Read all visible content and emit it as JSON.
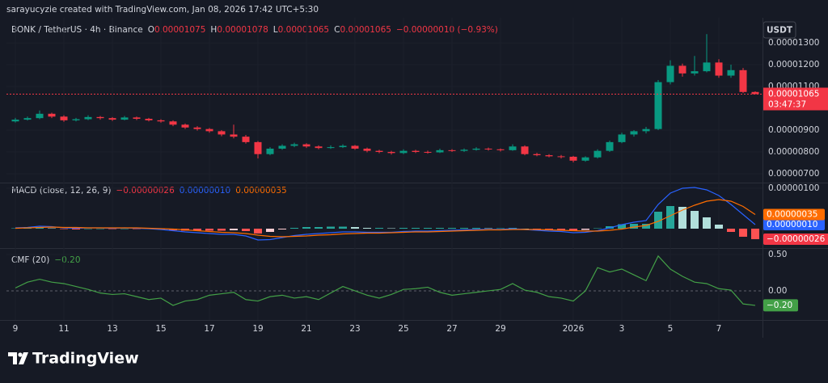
{
  "header": {
    "watermark": "sarayucyzie created with TradingView.com, Jan 08, 2026 17:42 UTC+5:30",
    "currency": "USDT",
    "brand": "TradingView"
  },
  "chart_data": [
    {
      "type": "candlestick",
      "title": "BONK / TetherUS · 4h · Binance",
      "legend": [
        {
          "key": "O",
          "value": "0.00001075"
        },
        {
          "key": "H",
          "value": "0.00001078"
        },
        {
          "key": "L",
          "value": "0.00001065"
        },
        {
          "key": "C",
          "value": "0.00001065"
        }
      ],
      "change": "−0.00000010 (−0.93%)",
      "categories": [
        "9",
        null,
        null,
        null,
        "11",
        null,
        null,
        null,
        "13",
        null,
        null,
        null,
        "15",
        null,
        null,
        null,
        "17",
        null,
        null,
        null,
        "19",
        null,
        null,
        null,
        "21",
        null,
        null,
        null,
        "23",
        null,
        null,
        null,
        "25",
        null,
        null,
        null,
        "27",
        null,
        null,
        null,
        "29",
        null,
        null,
        null,
        null,
        null,
        "2026",
        null,
        null,
        null,
        "3",
        null,
        null,
        null,
        "5",
        null,
        null,
        null,
        "7",
        null,
        null,
        null
      ],
      "open": [
        9.4e-06,
        9.48e-06,
        9.55e-06,
        9.75e-06,
        9.62e-06,
        9.45e-06,
        9.5e-06,
        9.6e-06,
        9.55e-06,
        9.48e-06,
        9.58e-06,
        9.52e-06,
        9.45e-06,
        9.4e-06,
        9.25e-06,
        9.12e-06,
        9.05e-06,
        8.95e-06,
        8.8e-06,
        8.7e-06,
        8.45e-06,
        7.9e-06,
        8.15e-06,
        8.28e-06,
        8.35e-06,
        8.25e-06,
        8.18e-06,
        8.22e-06,
        8.28e-06,
        8.15e-06,
        8.05e-06,
        8e-06,
        7.95e-06,
        8.05e-06,
        8e-06,
        7.98e-06,
        8.08e-06,
        8.05e-06,
        8.1e-06,
        8.15e-06,
        8.12e-06,
        8.08e-06,
        8.25e-06,
        7.9e-06,
        7.85e-06,
        7.8e-06,
        7.78e-06,
        7.6e-06,
        7.75e-06,
        8.05e-06,
        8.45e-06,
        8.8e-06,
        8.95e-06,
        9.05e-06,
        1.12e-05,
        1.195e-05,
        1.16e-05,
        1.17e-05,
        1.21e-05,
        1.15e-05,
        1.175e-05,
        1.075e-05
      ],
      "high": [
        9.56e-06,
        9.62e-06,
        9.9e-06,
        9.8e-06,
        9.68e-06,
        9.56e-06,
        9.68e-06,
        9.65e-06,
        9.6e-06,
        9.65e-06,
        9.62e-06,
        9.56e-06,
        9.5e-06,
        9.45e-06,
        9.3e-06,
        9.18e-06,
        9.1e-06,
        9e-06,
        9.25e-06,
        8.78e-06,
        8.5e-06,
        8.22e-06,
        8.35e-06,
        8.42e-06,
        8.4e-06,
        8.3e-06,
        8.3e-06,
        8.35e-06,
        8.32e-06,
        8.2e-06,
        8.1e-06,
        8.05e-06,
        8.12e-06,
        8.1e-06,
        8.06e-06,
        8.15e-06,
        8.13e-06,
        8.16e-06,
        8.22e-06,
        8.2e-06,
        8.16e-06,
        8.35e-06,
        8.3e-06,
        7.96e-06,
        7.9e-06,
        7.86e-06,
        7.82e-06,
        7.8e-06,
        8.12e-06,
        8.52e-06,
        8.88e-06,
        9e-06,
        9.15e-06,
        1.13e-05,
        1.22e-05,
        1.205e-05,
        1.24e-05,
        1.34e-05,
        1.225e-05,
        1.2e-05,
        1.185e-05,
        1.078e-05
      ],
      "low": [
        9.35e-06,
        9.44e-06,
        9.5e-06,
        9.55e-06,
        9.38e-06,
        9.4e-06,
        9.46e-06,
        9.48e-06,
        9.42e-06,
        9.45e-06,
        9.46e-06,
        9.4e-06,
        9.34e-06,
        9.18e-06,
        9.05e-06,
        8.98e-06,
        8.88e-06,
        8.72e-06,
        8.62e-06,
        8.38e-06,
        7.7e-06,
        7.85e-06,
        8.1e-06,
        8.22e-06,
        8.18e-06,
        8.12e-06,
        8.14e-06,
        8.18e-06,
        8.1e-06,
        7.98e-06,
        7.94e-06,
        7.88e-06,
        7.9e-06,
        7.95e-06,
        7.92e-06,
        7.95e-06,
        8e-06,
        8e-06,
        8.06e-06,
        8.06e-06,
        8.02e-06,
        8.05e-06,
        7.85e-06,
        7.8e-06,
        7.75e-06,
        7.7e-06,
        7.52e-06,
        7.55e-06,
        7.7e-06,
        8e-06,
        8.4e-06,
        8.7e-06,
        8.85e-06,
        9e-06,
        1.11e-05,
        1.145e-05,
        1.15e-05,
        1.165e-05,
        1.14e-05,
        1.14e-05,
        1.07e-05,
        1.065e-05
      ],
      "close": [
        9.48e-06,
        9.55e-06,
        9.75e-06,
        9.62e-06,
        9.45e-06,
        9.5e-06,
        9.6e-06,
        9.55e-06,
        9.48e-06,
        9.58e-06,
        9.52e-06,
        9.45e-06,
        9.4e-06,
        9.25e-06,
        9.12e-06,
        9.05e-06,
        8.95e-06,
        8.8e-06,
        8.7e-06,
        8.45e-06,
        7.9e-06,
        8.15e-06,
        8.28e-06,
        8.35e-06,
        8.25e-06,
        8.18e-06,
        8.22e-06,
        8.28e-06,
        8.15e-06,
        8.05e-06,
        8e-06,
        7.95e-06,
        8.05e-06,
        8e-06,
        7.98e-06,
        8.08e-06,
        8.05e-06,
        8.1e-06,
        8.15e-06,
        8.12e-06,
        8.08e-06,
        8.25e-06,
        7.9e-06,
        7.85e-06,
        7.8e-06,
        7.78e-06,
        7.6e-06,
        7.75e-06,
        8.05e-06,
        8.45e-06,
        8.8e-06,
        8.95e-06,
        9.05e-06,
        1.12e-05,
        1.195e-05,
        1.16e-05,
        1.17e-05,
        1.21e-05,
        1.15e-05,
        1.175e-05,
        1.075e-05,
        1.065e-05
      ],
      "up_color": "#089981",
      "down_color": "#f23645",
      "ylim": [
        6.63e-06,
        1.341e-05
      ],
      "yticks": [
        {
          "value": 7e-06,
          "label": "0.00000700"
        },
        {
          "value": 8e-06,
          "label": "0.00000800"
        },
        {
          "value": 9e-06,
          "label": "0.00000900"
        },
        {
          "value": 1.1e-05,
          "label": "0.00001100"
        },
        {
          "value": 1.2e-05,
          "label": "0.00001200"
        },
        {
          "value": 1.3e-05,
          "label": "0.00001300"
        }
      ],
      "grid": true,
      "last_label": "0.00001065",
      "countdown": "03:47:37"
    },
    {
      "type": "macd",
      "title": "MACD (close, 12, 26, 9)",
      "series": [
        {
          "kind": "histogram",
          "color": "#f23645",
          "last_label": "−0.00000026",
          "values": [
            1e-08,
            1e-08,
            3e-08,
            1e-08,
            -1e-08,
            -2e-08,
            0,
            0,
            -1e-08,
            0,
            -1e-08,
            -1e-08,
            -2e-08,
            -4e-08,
            -5e-08,
            -5e-08,
            -5e-08,
            -5e-08,
            -4e-08,
            -6e-08,
            -1.2e-07,
            -8e-08,
            -2e-08,
            2e-08,
            4e-08,
            4e-08,
            5e-08,
            5e-08,
            4e-08,
            2e-08,
            2e-08,
            1e-08,
            2e-08,
            2e-08,
            2e-08,
            2e-08,
            2e-08,
            2e-08,
            2e-08,
            1e-08,
            1e-08,
            2e-08,
            0,
            -2e-08,
            -3e-08,
            -3e-08,
            -5e-08,
            -3e-08,
            1e-08,
            6e-08,
            1.1e-07,
            1.2e-07,
            1.2e-07,
            4.2e-07,
            5.6e-07,
            5.4e-07,
            4.4e-07,
            2.8e-07,
            1e-07,
            -8e-08,
            -2e-07,
            -2.6e-07
          ]
        },
        {
          "kind": "line",
          "color": "#2962ff",
          "last_label": "0.00000010",
          "values": [
            2e-08,
            3e-08,
            6e-08,
            5e-08,
            2e-08,
            1e-08,
            2e-08,
            2e-08,
            1e-08,
            2e-08,
            1e-08,
            0,
            -2e-08,
            -5e-08,
            -8e-08,
            -1e-07,
            -1.2e-07,
            -1.4e-07,
            -1.4e-07,
            -1.8e-07,
            -2.8e-07,
            -2.7e-07,
            -2.2e-07,
            -1.7e-07,
            -1.4e-07,
            -1.2e-07,
            -1e-07,
            -8e-08,
            -8e-08,
            -9e-08,
            -9e-08,
            -9e-08,
            -7e-08,
            -6e-08,
            -6e-08,
            -5e-08,
            -4e-08,
            -3e-08,
            -2e-08,
            -2e-08,
            -2e-08,
            0,
            -2e-08,
            -4e-08,
            -6e-08,
            -7e-08,
            -1e-07,
            -9e-08,
            -5e-08,
            2e-08,
            1e-07,
            1.6e-07,
            2e-07,
            6e-07,
            8.8e-07,
            1e-06,
            1.02e-06,
            9.6e-07,
            8.2e-07,
            6e-07,
            3.5e-07,
            1e-07
          ]
        },
        {
          "kind": "line",
          "color": "#ff6d00",
          "last_label": "0.00000035",
          "values": [
            1e-08,
            2e-08,
            3e-08,
            4e-08,
            3e-08,
            3e-08,
            2e-08,
            2e-08,
            2e-08,
            2e-08,
            2e-08,
            1e-08,
            0,
            -1e-08,
            -3e-08,
            -5e-08,
            -7e-08,
            -9e-08,
            -1e-07,
            -1.2e-07,
            -1.6e-07,
            -1.9e-07,
            -2e-07,
            -1.9e-07,
            -1.8e-07,
            -1.6e-07,
            -1.5e-07,
            -1.3e-07,
            -1.2e-07,
            -1.1e-07,
            -1.1e-07,
            -1e-07,
            -9e-08,
            -8e-08,
            -8e-08,
            -7e-08,
            -6e-08,
            -5e-08,
            -4e-08,
            -3e-08,
            -3e-08,
            -2e-08,
            -2e-08,
            -2e-08,
            -3e-08,
            -4e-08,
            -5e-08,
            -6e-08,
            -6e-08,
            -4e-08,
            -1e-08,
            4e-08,
            8e-08,
            1.8e-07,
            3.2e-07,
            4.6e-07,
            5.8e-07,
            6.8e-07,
            7.2e-07,
            6.8e-07,
            5.5e-07,
            3.5e-07
          ]
        }
      ],
      "ylim": [
        -4.4e-07,
        1.1e-06
      ],
      "yticks": [
        {
          "value": 1e-06,
          "label": "0.00000100"
        }
      ]
    },
    {
      "type": "line",
      "title": "CMF (20)",
      "color": "#43a047",
      "last_label": "−0.20",
      "values": [
        0.04,
        0.12,
        0.16,
        0.12,
        0.1,
        0.06,
        0.02,
        -0.03,
        -0.05,
        -0.04,
        -0.08,
        -0.12,
        -0.1,
        -0.2,
        -0.14,
        -0.12,
        -0.06,
        -0.04,
        -0.02,
        -0.12,
        -0.14,
        -0.08,
        -0.06,
        -0.1,
        -0.08,
        -0.12,
        -0.03,
        0.06,
        0,
        -0.06,
        -0.1,
        -0.05,
        0.02,
        0.03,
        0.05,
        -0.02,
        -0.06,
        -0.04,
        -0.02,
        0,
        0.02,
        0.1,
        0.01,
        -0.02,
        -0.08,
        -0.1,
        -0.14,
        0,
        0.32,
        0.26,
        0.3,
        0.22,
        0.14,
        0.48,
        0.3,
        0.2,
        0.12,
        0.1,
        0.03,
        0.01,
        -0.18,
        -0.2
      ],
      "ylim": [
        -0.39,
        0.556
      ],
      "yticks": [
        {
          "value": 0.5,
          "label": "0.50"
        },
        {
          "value": 0,
          "label": "0.00"
        }
      ]
    }
  ]
}
